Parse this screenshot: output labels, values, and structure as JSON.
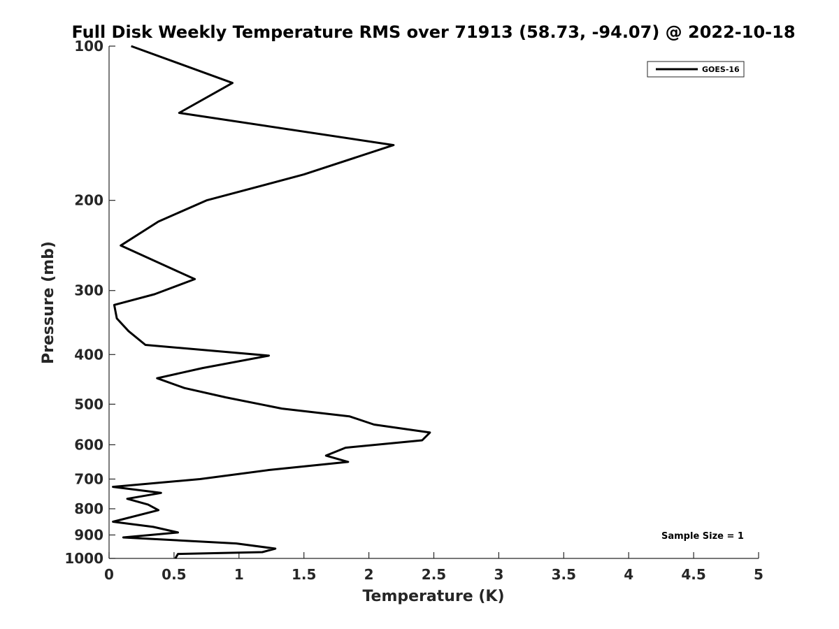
{
  "chart_data": {
    "type": "line",
    "title": "Full Disk Weekly Temperature RMS over 71913 (58.73, -94.07) @ 2022-10-18",
    "xlabel": "Temperature (K)",
    "ylabel": "Pressure (mb)",
    "xlim": [
      0,
      5
    ],
    "ylim": [
      100,
      1000
    ],
    "y_scale": "log",
    "y_reversed": true,
    "x_ticks": [
      "0",
      "0.5",
      "1",
      "1.5",
      "2",
      "2.5",
      "3",
      "3.5",
      "4",
      "4.5",
      "5"
    ],
    "y_ticks": [
      "100",
      "200",
      "300",
      "400",
      "500",
      "600",
      "700",
      "800",
      "900",
      "1000"
    ],
    "grid": false,
    "legend_position": "top-right",
    "series": [
      {
        "name": "GOES-16",
        "color": "#000000",
        "points": [
          [
            0.17,
            100
          ],
          [
            0.95,
            118
          ],
          [
            0.54,
            135
          ],
          [
            2.19,
            156
          ],
          [
            1.5,
            178
          ],
          [
            0.75,
            200
          ],
          [
            0.38,
            220
          ],
          [
            0.09,
            245
          ],
          [
            0.66,
            285
          ],
          [
            0.35,
            305
          ],
          [
            0.04,
            320
          ],
          [
            0.06,
            340
          ],
          [
            0.15,
            360
          ],
          [
            0.28,
            383
          ],
          [
            1.23,
            402
          ],
          [
            0.72,
            425
          ],
          [
            0.37,
            445
          ],
          [
            0.58,
            465
          ],
          [
            0.9,
            485
          ],
          [
            1.33,
            510
          ],
          [
            1.85,
            528
          ],
          [
            2.04,
            548
          ],
          [
            2.47,
            568
          ],
          [
            2.41,
            588
          ],
          [
            1.82,
            608
          ],
          [
            1.67,
            630
          ],
          [
            1.84,
            648
          ],
          [
            1.23,
            672
          ],
          [
            0.7,
            700
          ],
          [
            0.03,
            725
          ],
          [
            0.4,
            745
          ],
          [
            0.14,
            765
          ],
          [
            0.3,
            785
          ],
          [
            0.38,
            805
          ],
          [
            0.03,
            848
          ],
          [
            0.34,
            868
          ],
          [
            0.53,
            890
          ],
          [
            0.11,
            910
          ],
          [
            0.98,
            935
          ],
          [
            1.28,
            957
          ],
          [
            1.18,
            972
          ],
          [
            0.53,
            980
          ],
          [
            0.51,
            1000
          ]
        ]
      }
    ],
    "annotations": [
      "Sample Size = 1"
    ]
  }
}
